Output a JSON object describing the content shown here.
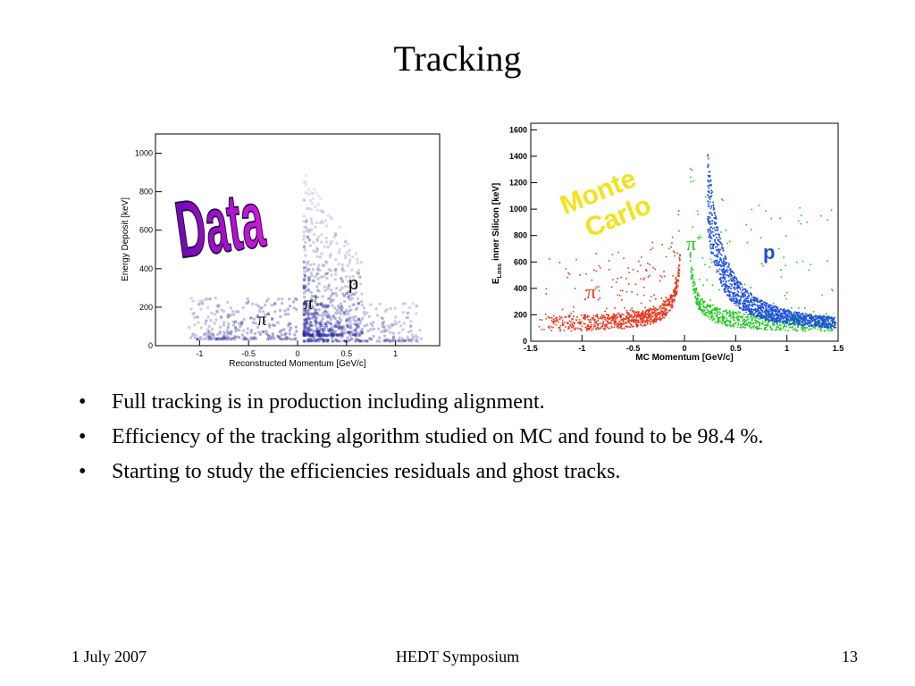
{
  "slide": {
    "title": "Tracking",
    "bullets": [
      "Full tracking is in production including alignment.",
      "Efficiency of the tracking algorithm studied on MC and found to be 98.4 %.",
      "Starting to study the efficiencies residuals and ghost tracks."
    ],
    "bullet_glyph": "•"
  },
  "footer": {
    "date": "1 July 2007",
    "event": "HEDT Symposium",
    "page": "13"
  },
  "figures": {
    "data_plot": {
      "stamp": "Data",
      "stamp_colors": [
        "#6a0dad",
        "#d21ad8"
      ],
      "xlabel": "Reconstructed Momentum [GeV/c]",
      "ylabel": "Energy Deposit [keV]",
      "x_ticks": [
        "-1",
        "-0.5",
        "0",
        "0.5",
        "1"
      ],
      "y_ticks": [
        "0",
        "200",
        "400",
        "600",
        "800",
        "1000"
      ],
      "labels": {
        "pim": "π",
        "pim_sup": "-",
        "pip": "π",
        "pip_sup": "+",
        "p": "p"
      }
    },
    "mc_plot": {
      "stamp_line1": "Monte",
      "stamp_line2": "Carlo",
      "stamp_color": "#f2e21a",
      "xlabel": "MC Momentum [GeV/c]",
      "ylabel_main": "E",
      "ylabel_sub": "Loss",
      "ylabel_rest": "inner Silicon [keV]",
      "x_ticks": [
        "-1.5",
        "-1",
        "-0.5",
        "0",
        "0.5",
        "1",
        "1.5"
      ],
      "y_ticks": [
        "0",
        "200",
        "400",
        "600",
        "800",
        "1000",
        "1200",
        "1400",
        "1600"
      ],
      "labels": {
        "pim": "π",
        "pim_sup": "-",
        "pip": "π",
        "pip_sup": "+",
        "p": "p"
      },
      "colors": {
        "pim": "#e8361c",
        "pip": "#1ec81e",
        "p": "#1f4fe0"
      }
    }
  }
}
